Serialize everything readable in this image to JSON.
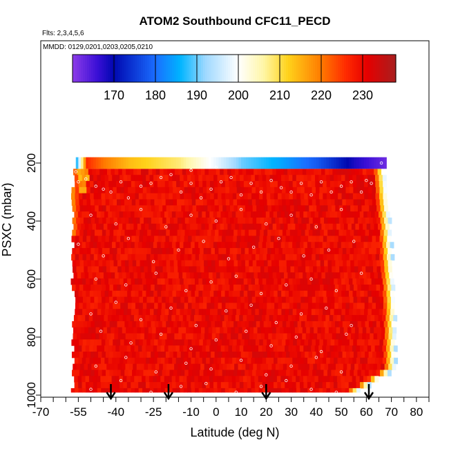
{
  "chart_data": {
    "type": "heatmap",
    "title": "ATOM2 Southbound CFC11_PECD",
    "flights_note": "Flts: 2,3,4,5,6",
    "mmdd_note": "MMDD: 0129,0201,0203,0205,0210",
    "xlabel": "Latitude (deg N)",
    "ylabel": "PSXC (mbar)",
    "xlim": [
      -70,
      85
    ],
    "ylim": [
      1000,
      0
    ],
    "x_ticks": [
      -70,
      -55,
      -40,
      -25,
      -10,
      0,
      10,
      20,
      30,
      40,
      50,
      60,
      70,
      80
    ],
    "x_minor_ticks": [
      -65,
      -60,
      -50,
      -45,
      -35,
      -30,
      -20,
      -15,
      -5,
      5,
      15,
      25,
      35,
      45,
      55,
      65,
      75,
      85
    ],
    "y_ticks": [
      200,
      400,
      600,
      800,
      1000
    ],
    "colorbar": {
      "range": [
        160,
        238
      ],
      "ticks": [
        170,
        180,
        190,
        200,
        210,
        220,
        230
      ],
      "stops": [
        {
          "v": 160,
          "c": "#8c3ce8"
        },
        {
          "v": 166,
          "c": "#3a0fd6"
        },
        {
          "v": 170,
          "c": "#0008b0"
        },
        {
          "v": 180,
          "c": "#1a6dff"
        },
        {
          "v": 186,
          "c": "#00b4ff"
        },
        {
          "v": 192,
          "c": "#9ed8ff"
        },
        {
          "v": 200,
          "c": "#ffffff"
        },
        {
          "v": 206,
          "c": "#fff6a8"
        },
        {
          "v": 212,
          "c": "#ffd21a"
        },
        {
          "v": 220,
          "c": "#ff7a00"
        },
        {
          "v": 226,
          "c": "#ff2a00"
        },
        {
          "v": 231,
          "c": "#e60000"
        },
        {
          "v": 238,
          "c": "#a81e1e"
        }
      ]
    },
    "top_band": {
      "pressure_range": [
        180,
        220
      ],
      "lat_range": [
        -56,
        68
      ],
      "values": [
        {
          "lat": -56,
          "v": 188
        },
        {
          "lat": -52,
          "v": 226
        },
        {
          "lat": -45,
          "v": 220
        },
        {
          "lat": -35,
          "v": 214
        },
        {
          "lat": -15,
          "v": 208
        },
        {
          "lat": 0,
          "v": 198
        },
        {
          "lat": 10,
          "v": 190
        },
        {
          "lat": 25,
          "v": 185
        },
        {
          "lat": 40,
          "v": 178
        },
        {
          "lat": 55,
          "v": 168
        },
        {
          "lat": 68,
          "v": 162
        }
      ]
    },
    "field_value": 230,
    "field_edge": {
      "south_lat": -58,
      "north_lat_by_pressure": [
        {
          "p": 220,
          "lat": 67
        },
        {
          "p": 400,
          "lat": 69
        },
        {
          "p": 700,
          "lat": 71
        },
        {
          "p": 900,
          "lat": 71
        },
        {
          "p": 980,
          "lat": 56
        }
      ]
    },
    "arrow_latitudes": [
      -42,
      -19,
      20,
      61
    ],
    "sample_points": [
      [
        -62,
        260
      ],
      [
        -58,
        245
      ],
      [
        -55,
        265
      ],
      [
        -52,
        255
      ],
      [
        -48,
        280
      ],
      [
        -45,
        290
      ],
      [
        -42,
        300
      ],
      [
        -38,
        265
      ],
      [
        -35,
        320
      ],
      [
        -30,
        280
      ],
      [
        -26,
        270
      ],
      [
        -22,
        250
      ],
      [
        -18,
        240
      ],
      [
        -14,
        300
      ],
      [
        -10,
        270
      ],
      [
        -6,
        320
      ],
      [
        -2,
        290
      ],
      [
        2,
        265
      ],
      [
        6,
        250
      ],
      [
        10,
        310
      ],
      [
        14,
        270
      ],
      [
        18,
        300
      ],
      [
        22,
        260
      ],
      [
        26,
        285
      ],
      [
        30,
        300
      ],
      [
        34,
        270
      ],
      [
        38,
        310
      ],
      [
        42,
        265
      ],
      [
        46,
        300
      ],
      [
        50,
        280
      ],
      [
        54,
        265
      ],
      [
        58,
        300
      ],
      [
        62,
        270
      ],
      [
        -60,
        350
      ],
      [
        -50,
        380
      ],
      [
        -40,
        410
      ],
      [
        -30,
        360
      ],
      [
        -20,
        420
      ],
      [
        -10,
        380
      ],
      [
        0,
        400
      ],
      [
        10,
        360
      ],
      [
        20,
        410
      ],
      [
        30,
        380
      ],
      [
        40,
        420
      ],
      [
        50,
        360
      ],
      [
        -55,
        480
      ],
      [
        -45,
        520
      ],
      [
        -35,
        460
      ],
      [
        -25,
        540
      ],
      [
        -15,
        500
      ],
      [
        -5,
        470
      ],
      [
        5,
        530
      ],
      [
        15,
        490
      ],
      [
        25,
        460
      ],
      [
        35,
        520
      ],
      [
        45,
        500
      ],
      [
        55,
        470
      ],
      [
        -60,
        560
      ],
      [
        -48,
        600
      ],
      [
        -36,
        620
      ],
      [
        -24,
        580
      ],
      [
        -12,
        640
      ],
      [
        -2,
        610
      ],
      [
        8,
        590
      ],
      [
        18,
        650
      ],
      [
        28,
        620
      ],
      [
        38,
        600
      ],
      [
        48,
        640
      ],
      [
        58,
        580
      ],
      [
        -62,
        700
      ],
      [
        -50,
        720
      ],
      [
        -40,
        680
      ],
      [
        -30,
        740
      ],
      [
        -18,
        700
      ],
      [
        -8,
        760
      ],
      [
        4,
        710
      ],
      [
        14,
        690
      ],
      [
        24,
        750
      ],
      [
        34,
        720
      ],
      [
        44,
        700
      ],
      [
        54,
        760
      ],
      [
        -58,
        800
      ],
      [
        -46,
        780
      ],
      [
        -34,
        820
      ],
      [
        -22,
        790
      ],
      [
        -10,
        840
      ],
      [
        0,
        810
      ],
      [
        12,
        780
      ],
      [
        22,
        830
      ],
      [
        32,
        800
      ],
      [
        42,
        850
      ],
      [
        52,
        790
      ],
      [
        -60,
        880
      ],
      [
        -48,
        900
      ],
      [
        -36,
        870
      ],
      [
        -24,
        920
      ],
      [
        -12,
        890
      ],
      [
        -2,
        910
      ],
      [
        10,
        880
      ],
      [
        20,
        930
      ],
      [
        30,
        900
      ],
      [
        40,
        870
      ],
      [
        50,
        920
      ],
      [
        -62,
        960
      ],
      [
        -50,
        980
      ],
      [
        -38,
        950
      ],
      [
        -26,
        990
      ],
      [
        -14,
        970
      ],
      [
        -4,
        960
      ],
      [
        8,
        990
      ],
      [
        18,
        970
      ],
      [
        28,
        950
      ],
      [
        38,
        980
      ],
      [
        48,
        990
      ],
      [
        -56,
        230
      ],
      [
        -10,
        225
      ],
      [
        0,
        215
      ],
      [
        60,
        260
      ],
      [
        66,
        200
      ]
    ]
  }
}
